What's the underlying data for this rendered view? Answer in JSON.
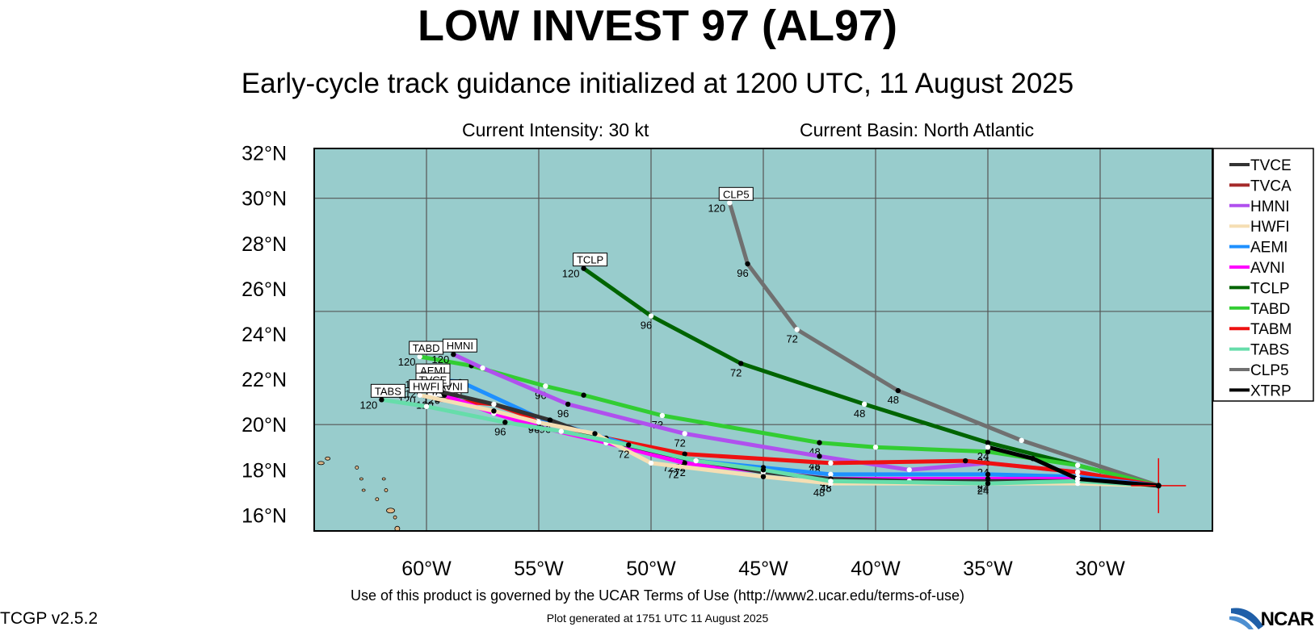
{
  "title": "LOW INVEST 97 (AL97)",
  "subtitle": "Early-cycle track guidance initialized at 1200 UTC, 11 August 2025",
  "current_intensity": "Current Intensity: 30 kt",
  "current_basin": "Current Basin: North Atlantic",
  "footer_terms": "Use of this product is governed by the UCAR Terms of Use (http://www2.ucar.edu/terms-of-use)",
  "footer_generated": "Plot generated at 1751 UTC   11 August 2025",
  "version": "TCGP v2.5.2",
  "logo_text": "NCAR",
  "colors": {
    "ocean": "#98cccc",
    "land": "#e0b888",
    "grid": "#555555"
  },
  "map": {
    "lon_range": [
      -65,
      -25
    ],
    "lat_range": [
      15.3,
      32.2
    ],
    "lon_ticks": [
      -60,
      -55,
      -50,
      -45,
      -40,
      -35,
      -30
    ],
    "lat_ticks": [
      16,
      18,
      20,
      22,
      24,
      26,
      28,
      30,
      32
    ],
    "lon_labels": [
      "60°W",
      "55°W",
      "50°W",
      "45°W",
      "40°W",
      "35°W",
      "30°W"
    ],
    "lat_labels": [
      "16°N",
      "18°N",
      "20°N",
      "22°N",
      "24°N",
      "26°N",
      "28°N",
      "30°N",
      "32°N"
    ],
    "origin": {
      "lon": -27.4,
      "lat": 17.3
    }
  },
  "legend": [
    {
      "name": "TVCE",
      "color": "#333333"
    },
    {
      "name": "TVCA",
      "color": "#a52a2a"
    },
    {
      "name": "HMNI",
      "color": "#b050ee"
    },
    {
      "name": "HWFI",
      "color": "#f5deb3"
    },
    {
      "name": "AEMI",
      "color": "#1e90ff"
    },
    {
      "name": "AVNI",
      "color": "#ff00ff"
    },
    {
      "name": "TCLP",
      "color": "#006400"
    },
    {
      "name": "TABD",
      "color": "#32cd32"
    },
    {
      "name": "TABM",
      "color": "#ee1111"
    },
    {
      "name": "TABS",
      "color": "#66ddaa"
    },
    {
      "name": "CLP5",
      "color": "#707070"
    },
    {
      "name": "XTRP",
      "color": "#000000"
    }
  ],
  "tracks": [
    {
      "name": "TCLP",
      "color": "#006400",
      "end_label": "TCLP",
      "label_120": "120",
      "points": [
        [
          -27.4,
          17.3
        ],
        [
          -31,
          18.2
        ],
        [
          -35,
          19.2
        ],
        [
          -40.5,
          20.9
        ],
        [
          -46,
          22.7
        ],
        [
          -50,
          24.8
        ],
        [
          -53,
          26.9
        ]
      ],
      "hour_labels": [
        {
          "text": "48",
          "lon": -40.5,
          "lat": 20.9
        },
        {
          "text": "72",
          "lon": -46,
          "lat": 22.7
        },
        {
          "text": "96",
          "lon": -50,
          "lat": 24.8
        }
      ]
    },
    {
      "name": "CLP5",
      "color": "#707070",
      "end_label": "CLP5",
      "label_120": "120",
      "points": [
        [
          -27.4,
          17.3
        ],
        [
          -33.5,
          19.3
        ],
        [
          -39,
          21.5
        ],
        [
          -43.5,
          24.2
        ],
        [
          -45.7,
          27.1
        ],
        [
          -46.5,
          29.8
        ]
      ],
      "hour_labels": [
        {
          "text": "48",
          "lon": -39,
          "lat": 21.5
        },
        {
          "text": "72",
          "lon": -43.5,
          "lat": 24.2
        },
        {
          "text": "96",
          "lon": -45.7,
          "lat": 27.1
        }
      ]
    },
    {
      "name": "TABD",
      "color": "#32cd32",
      "end_label": "TABD",
      "label_120": "120",
      "points": [
        [
          -27.4,
          17.3
        ],
        [
          -31,
          18.2
        ],
        [
          -35,
          18.8
        ],
        [
          -40,
          19
        ],
        [
          -42.5,
          19.2
        ],
        [
          -49.5,
          20.4
        ],
        [
          -53,
          21.3
        ],
        [
          -54.7,
          21.7
        ],
        [
          -58,
          22.6
        ],
        [
          -60.3,
          23
        ]
      ],
      "hour_labels": [
        {
          "text": "24",
          "lon": -35,
          "lat": 18.8
        },
        {
          "text": "48",
          "lon": -42.5,
          "lat": 19.2
        },
        {
          "text": "72",
          "lon": -49.5,
          "lat": 20.4
        },
        {
          "text": "96",
          "lon": -54.7,
          "lat": 21.7
        }
      ]
    },
    {
      "name": "HMNI",
      "color": "#b050ee",
      "end_label": "HMNI",
      "label_120": "120",
      "points": [
        [
          -27.4,
          17.3
        ],
        [
          -31,
          17.9
        ],
        [
          -35,
          18.3
        ],
        [
          -38.5,
          18
        ],
        [
          -42.5,
          18.6
        ],
        [
          -48.5,
          19.6
        ],
        [
          -53.7,
          20.9
        ],
        [
          -57.5,
          22.5
        ],
        [
          -58.8,
          23.1
        ]
      ],
      "hour_labels": [
        {
          "text": "48",
          "lon": -42.5,
          "lat": 18.6
        },
        {
          "text": "72",
          "lon": -48.5,
          "lat": 19.6
        },
        {
          "text": "96",
          "lon": -53.7,
          "lat": 20.9
        }
      ]
    },
    {
      "name": "TABM",
      "color": "#ee1111",
      "end_label": "TABM",
      "label_120": "120",
      "points": [
        [
          -27.4,
          17.3
        ],
        [
          -31,
          17.9
        ],
        [
          -36,
          18.4
        ],
        [
          -42,
          18.3
        ],
        [
          -48.5,
          18.7
        ],
        [
          -52,
          19.4
        ],
        [
          -55,
          20.2
        ],
        [
          -57,
          20.9
        ],
        [
          -59.5,
          21.1
        ]
      ],
      "hour_labels": [
        {
          "text": "24",
          "lon": -35,
          "lat": 18.3
        },
        {
          "text": "48",
          "lon": -42.5,
          "lat": 18.4
        },
        {
          "text": "96",
          "lon": -55,
          "lat": 20.2
        }
      ]
    },
    {
      "name": "AEMI",
      "color": "#1e90ff",
      "end_label": "AEMI",
      "label_120": "120",
      "points": [
        [
          -27.4,
          17.3
        ],
        [
          -31,
          17.7
        ],
        [
          -35,
          17.8
        ],
        [
          -42,
          17.8
        ],
        [
          -45,
          18.1
        ],
        [
          -49,
          18.5
        ],
        [
          -52,
          19.4
        ],
        [
          -55,
          20.3
        ],
        [
          -58.5,
          21.9
        ],
        [
          -60,
          22
        ]
      ],
      "hour_labels": [
        {
          "text": "24",
          "lon": -35,
          "lat": 17.8
        },
        {
          "text": "48",
          "lon": -42,
          "lat": 17.8
        },
        {
          "text": "72",
          "lon": -49,
          "lat": 18.5
        },
        {
          "text": "96",
          "lon": -55,
          "lat": 20.3
        }
      ]
    },
    {
      "name": "AVNI",
      "color": "#ff00ff",
      "end_label": "AVNI",
      "label_120": "120",
      "points": [
        [
          -27.4,
          17.3
        ],
        [
          -31,
          17.6
        ],
        [
          -35,
          17.6
        ],
        [
          -42,
          17.6
        ],
        [
          -48.5,
          18.3
        ],
        [
          -52,
          19.2
        ],
        [
          -55,
          19.9
        ],
        [
          -57,
          20.5
        ],
        [
          -59.2,
          21.3
        ]
      ],
      "hour_labels": [
        {
          "text": "24",
          "lon": -35,
          "lat": 17.6
        },
        {
          "text": "48",
          "lon": -42,
          "lat": 17.6
        },
        {
          "text": "72",
          "lon": -48.5,
          "lat": 18.3
        }
      ]
    },
    {
      "name": "TVCE",
      "color": "#333333",
      "end_label": "TVCE",
      "label_120": "120",
      "points": [
        [
          -27.4,
          17.3
        ],
        [
          -31,
          17.5
        ],
        [
          -35,
          17.5
        ],
        [
          -38.5,
          17.5
        ],
        [
          -42,
          17.6
        ],
        [
          -45,
          17.9
        ],
        [
          -48.5,
          18.5
        ],
        [
          -52,
          19.3
        ],
        [
          -54.5,
          20.2
        ],
        [
          -57,
          20.9
        ],
        [
          -60,
          21.6
        ]
      ],
      "hour_labels": [
        {
          "text": "24",
          "lon": -35,
          "lat": 17.5
        },
        {
          "text": "48",
          "lon": -42,
          "lat": 17.6
        },
        {
          "text": "72",
          "lon": -48.5,
          "lat": 18.5
        },
        {
          "text": "96",
          "lon": -54.5,
          "lat": 20.2
        }
      ]
    },
    {
      "name": "HWFI",
      "color": "#f5deb3",
      "end_label": "HWFI",
      "label_120": "120",
      "points": [
        [
          -27.4,
          17.3
        ],
        [
          -31,
          17.4
        ],
        [
          -35,
          17.4
        ],
        [
          -42,
          17.4
        ],
        [
          -45,
          17.7
        ],
        [
          -50,
          18.3
        ],
        [
          -52.5,
          19.6
        ],
        [
          -55,
          20.1
        ],
        [
          -57,
          20.6
        ],
        [
          -60.3,
          21.3
        ]
      ],
      "hour_labels": [
        {
          "text": "48",
          "lon": -42.3,
          "lat": 17.4
        },
        {
          "text": "72",
          "lon": -48.8,
          "lat": 18.2
        }
      ]
    },
    {
      "name": "TABS",
      "color": "#66ddaa",
      "end_label": "TABS",
      "label_120": "120",
      "points": [
        [
          -27.4,
          17.3
        ],
        [
          -31,
          17.5
        ],
        [
          -35,
          17.4
        ],
        [
          -42,
          17.5
        ],
        [
          -45,
          18
        ],
        [
          -48,
          18.4
        ],
        [
          -51,
          19.1
        ],
        [
          -54,
          19.7
        ],
        [
          -56.5,
          20.1
        ],
        [
          -60,
          20.8
        ],
        [
          -62,
          21.1
        ]
      ],
      "hour_labels": [
        {
          "text": "72",
          "lon": -51,
          "lat": 19.1
        },
        {
          "text": "96",
          "lon": -56.5,
          "lat": 20.1
        }
      ]
    },
    {
      "name": "XTRP",
      "color": "#000000",
      "end_label": "",
      "label_120": "",
      "points": [
        [
          -27.4,
          17.3
        ],
        [
          -31,
          17.6
        ],
        [
          -33,
          18.5
        ],
        [
          -35,
          19
        ]
      ],
      "hour_labels": [
        {
          "text": "24",
          "lon": -35,
          "lat": 19
        }
      ]
    }
  ]
}
